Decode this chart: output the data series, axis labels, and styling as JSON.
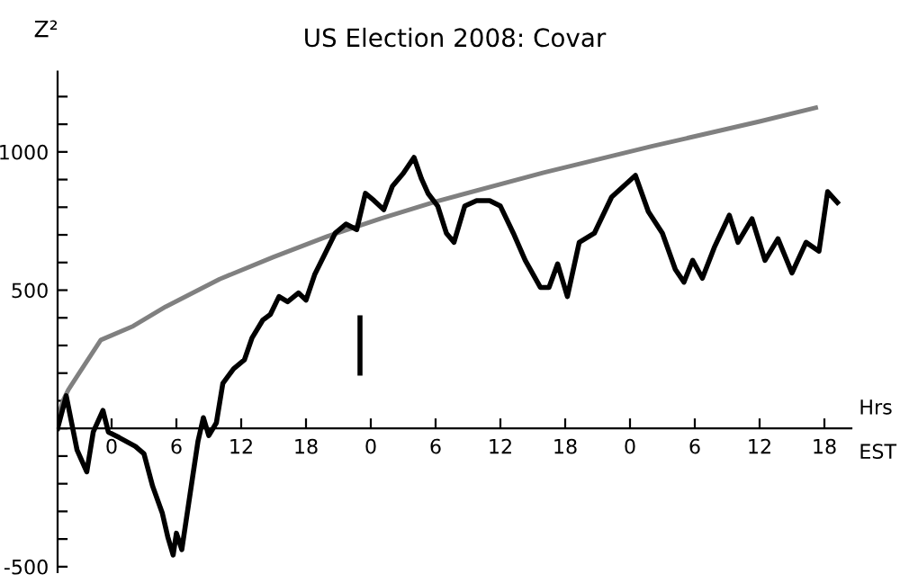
{
  "chart_data": {
    "type": "line",
    "title": "US Election 2008: Covar",
    "ylabel": "Z²",
    "xlabel": "Hrs",
    "annotations": [
      "EST"
    ],
    "series": [
      {
        "color": "#808080",
        "x": [
          "2008-11-03T19:00",
          "2008-11-03T19:12",
          "2008-11-03T19:30",
          "2008-11-03T20:00",
          "2008-11-03T21:00",
          "2008-11-03T23:00",
          "2008-11-04T02:00",
          "2008-11-04T05:00",
          "2008-11-04T10:00",
          "2008-11-04T15:00",
          "2008-11-04T20:00",
          "2008-11-05T01:00",
          "2008-11-05T06:00",
          "2008-11-05T16:00",
          "2008-11-06T02:00",
          "2008-11-06T12:00",
          "2008-11-06T17:12"
        ],
        "values": [
          0,
          60,
          100,
          140,
          200,
          320,
          370,
          440,
          540,
          620,
          695,
          760,
          820,
          925,
          1020,
          1110,
          1160
        ]
      },
      {
        "color": "#000000",
        "x": [
          "2008-11-03T19:00",
          "2008-11-03T19:48",
          "2008-11-03T20:48",
          "2008-11-03T21:42",
          "2008-11-03T22:18",
          "2008-11-03T23:12",
          "2008-11-03T23:42",
          "2008-11-04T00:42",
          "2008-11-04T02:12",
          "2008-11-04T03:00",
          "2008-11-04T03:48",
          "2008-11-04T04:42",
          "2008-11-04T05:12",
          "2008-11-04T05:42",
          "2008-11-04T06:00",
          "2008-11-04T06:30",
          "2008-11-04T07:00",
          "2008-11-04T07:30",
          "2008-11-04T08:00",
          "2008-11-04T08:30",
          "2008-11-04T09:00",
          "2008-11-04T09:42",
          "2008-11-04T10:18",
          "2008-11-04T11:18",
          "2008-11-04T12:18",
          "2008-11-04T13:00",
          "2008-11-04T14:00",
          "2008-11-04T14:42",
          "2008-11-04T15:30",
          "2008-11-04T16:18",
          "2008-11-04T17:18",
          "2008-11-04T18:00",
          "2008-11-04T18:48",
          "2008-11-04T19:42",
          "2008-11-04T20:42",
          "2008-11-04T21:42",
          "2008-11-04T22:42",
          "2008-11-04T23:30",
          "2008-11-05T00:18",
          "2008-11-05T01:12",
          "2008-11-05T02:00",
          "2008-11-05T03:00",
          "2008-11-05T04:00",
          "2008-11-05T04:42",
          "2008-11-05T05:18",
          "2008-11-05T06:12",
          "2008-11-05T07:00",
          "2008-11-05T07:42",
          "2008-11-05T08:42",
          "2008-11-05T09:48",
          "2008-11-05T11:00",
          "2008-11-05T12:00",
          "2008-11-05T13:12",
          "2008-11-05T14:18",
          "2008-11-05T15:42",
          "2008-11-05T16:30",
          "2008-11-05T17:18",
          "2008-11-05T18:12",
          "2008-11-05T19:18",
          "2008-11-05T20:42",
          "2008-11-05T22:18",
          "2008-11-06T00:30",
          "2008-11-06T01:42",
          "2008-11-06T03:00",
          "2008-11-06T04:12",
          "2008-11-06T05:00",
          "2008-11-06T05:48",
          "2008-11-06T06:42",
          "2008-11-06T07:48",
          "2008-11-06T09:12",
          "2008-11-06T10:00",
          "2008-11-06T11:18",
          "2008-11-06T12:30",
          "2008-11-06T13:42",
          "2008-11-06T15:00",
          "2008-11-06T16:18",
          "2008-11-06T17:30",
          "2008-11-06T18:18",
          "2008-11-06T19:12"
        ],
        "values": [
          0,
          118,
          -78,
          -157,
          -13,
          65,
          -13,
          -33,
          -65,
          -92,
          -209,
          -307,
          -392,
          -458,
          -379,
          -438,
          -307,
          -176,
          -46,
          39,
          -26,
          20,
          163,
          216,
          248,
          327,
          392,
          412,
          477,
          458,
          490,
          464,
          556,
          627,
          706,
          739,
          719,
          850,
          824,
          791,
          876,
          922,
          980,
          902,
          850,
          804,
          706,
          673,
          804,
          824,
          824,
          804,
          706,
          608,
          510,
          510,
          595,
          477,
          673,
          706,
          837,
          915,
          784,
          706,
          575,
          529,
          608,
          543,
          654,
          771,
          673,
          758,
          608,
          686,
          562,
          673,
          641,
          856,
          817
        ]
      },
      {
        "color": "#000000",
        "x": [
          "2008-11-04T23:00",
          "2008-11-04T23:00"
        ],
        "values": [
          200,
          400
        ]
      }
    ],
    "xlim": [
      "2008-11-03T19:00",
      "2008-11-06T20:30"
    ],
    "ylim": [
      -520,
      1290
    ],
    "xticks": [
      {
        "value": "2008-11-04T00:00",
        "label": "0"
      },
      {
        "value": "2008-11-04T06:00",
        "label": "6"
      },
      {
        "value": "2008-11-04T12:00",
        "label": "12"
      },
      {
        "value": "2008-11-04T18:00",
        "label": "18"
      },
      {
        "value": "2008-11-05T00:00",
        "label": "0"
      },
      {
        "value": "2008-11-05T06:00",
        "label": "6"
      },
      {
        "value": "2008-11-05T12:00",
        "label": "12"
      },
      {
        "value": "2008-11-05T18:00",
        "label": "18"
      },
      {
        "value": "2008-11-06T00:00",
        "label": "0"
      },
      {
        "value": "2008-11-06T06:00",
        "label": "6"
      },
      {
        "value": "2008-11-06T12:00",
        "label": "12"
      },
      {
        "value": "2008-11-06T18:00",
        "label": "18"
      }
    ],
    "yticks": [
      -500,
      {
        "value": -400,
        "label": null
      },
      {
        "value": -300,
        "label": null
      },
      {
        "value": -200,
        "label": null
      },
      {
        "value": -100,
        "label": null
      },
      {
        "value": 0,
        "label": null
      },
      {
        "value": 100,
        "label": null
      },
      {
        "value": 200,
        "label": null
      },
      {
        "value": 300,
        "label": null
      },
      {
        "value": 400,
        "label": null
      },
      500,
      {
        "value": 600,
        "label": null
      },
      {
        "value": 700,
        "label": null
      },
      {
        "value": 800,
        "label": null
      },
      {
        "value": 900,
        "label": null
      },
      1000,
      {
        "value": 1100,
        "label": null
      },
      {
        "value": 1200,
        "label": null
      }
    ],
    "grid": false,
    "legend": false,
    "marker": "none",
    "line_style": "solid"
  }
}
